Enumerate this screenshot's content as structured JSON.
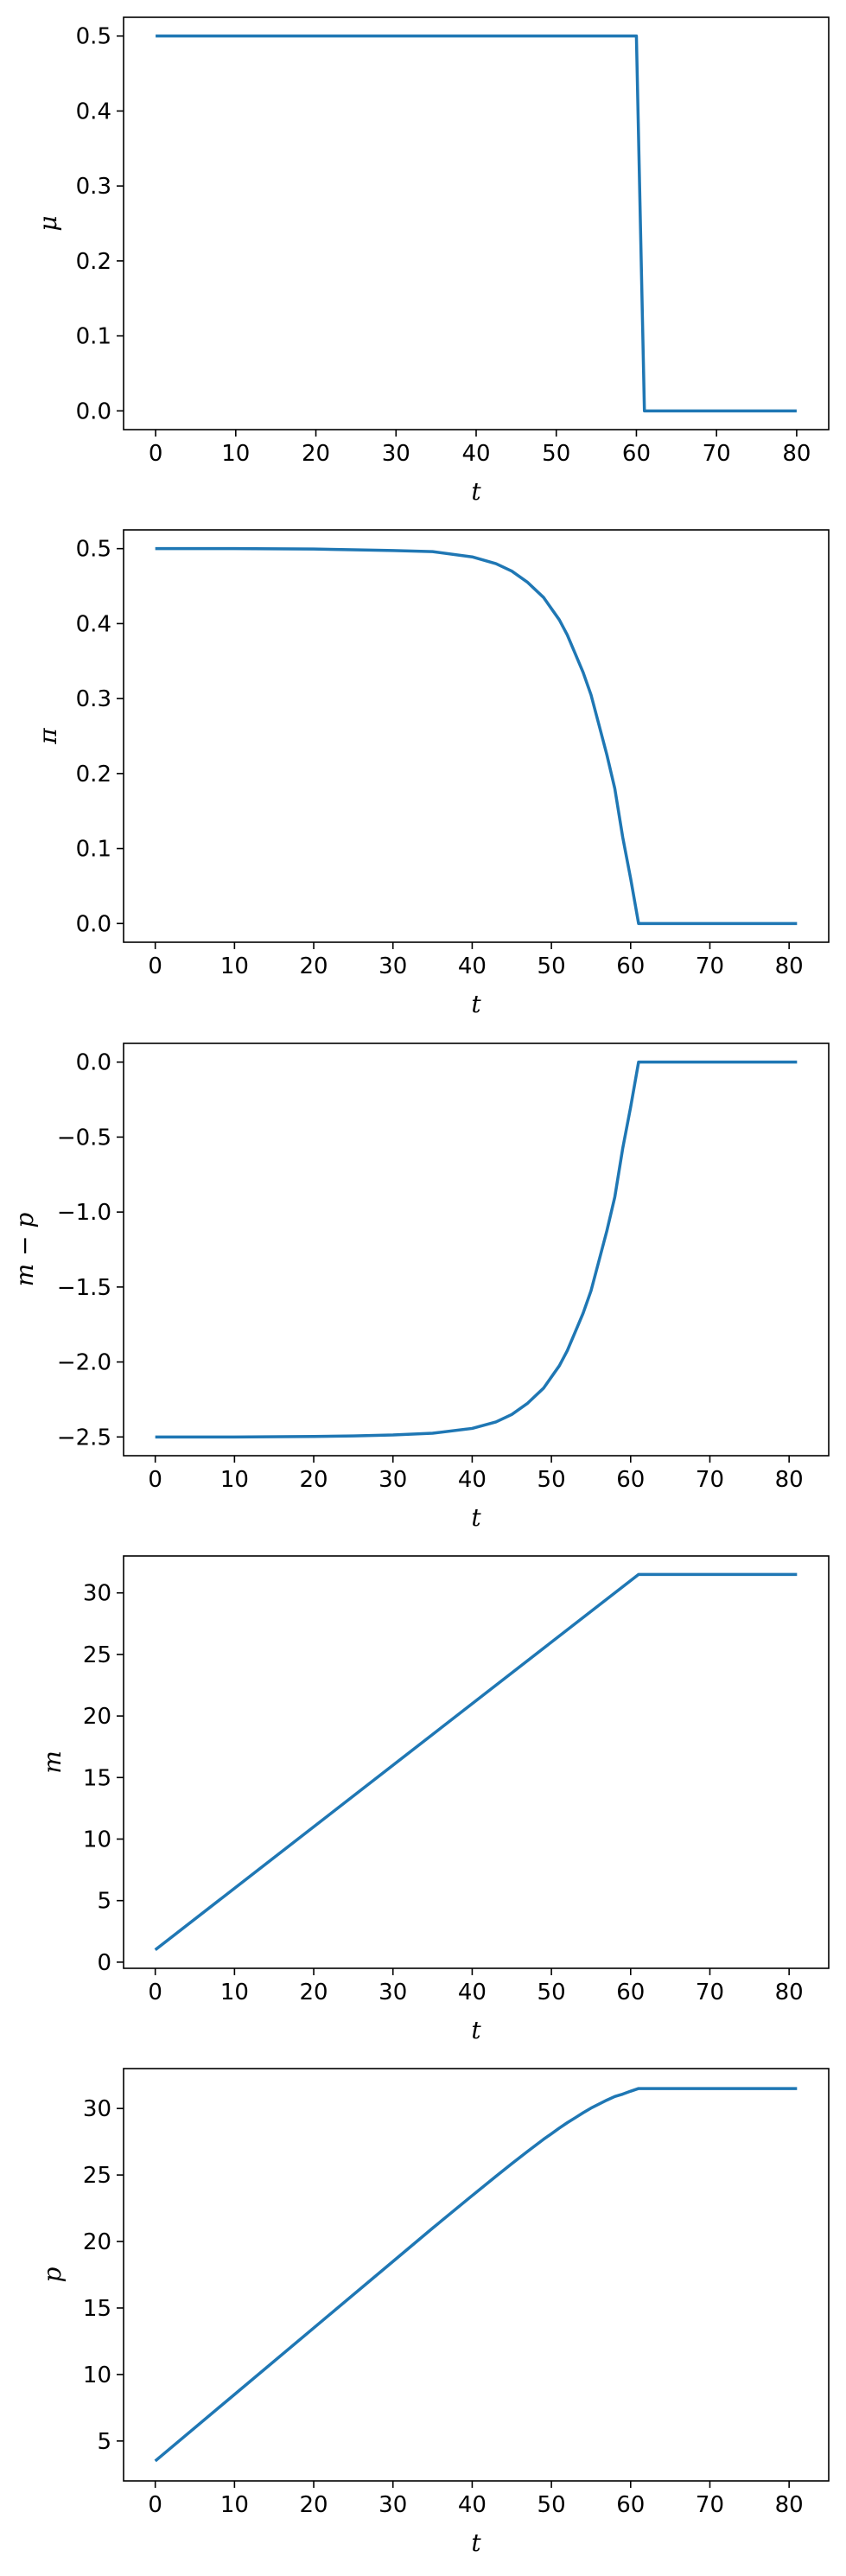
{
  "chart_data": [
    {
      "type": "line",
      "title": "",
      "xlabel": "t",
      "ylabel": "μ",
      "xlim": [
        -4,
        84
      ],
      "ylim": [
        -0.025,
        0.525
      ],
      "xticks": [
        0,
        10,
        20,
        30,
        40,
        50,
        60,
        70,
        80
      ],
      "yticks": [
        0.0,
        0.1,
        0.2,
        0.3,
        0.4,
        0.5
      ],
      "ytick_decimals": 1,
      "color": "#1f77b4",
      "grid": false,
      "series": [
        {
          "x": [
            0,
            60,
            61,
            80
          ],
          "y": [
            0.5,
            0.5,
            0.0,
            0.0
          ]
        }
      ]
    },
    {
      "type": "line",
      "title": "",
      "xlabel": "t",
      "ylabel": "π",
      "xlim": [
        -4,
        85
      ],
      "ylim": [
        -0.025,
        0.525
      ],
      "xticks": [
        0,
        10,
        20,
        30,
        40,
        50,
        60,
        70,
        80
      ],
      "yticks": [
        0.0,
        0.1,
        0.2,
        0.3,
        0.4,
        0.5
      ],
      "ytick_decimals": 1,
      "color": "#1f77b4",
      "grid": false,
      "series": [
        {
          "x": [
            0,
            10,
            20,
            25,
            30,
            35,
            40,
            43,
            45,
            47,
            49,
            50,
            51,
            52,
            53,
            54,
            55,
            56,
            57,
            58,
            59,
            60,
            61,
            62,
            70,
            81
          ],
          "y": [
            0.5,
            0.5,
            0.4995,
            0.4985,
            0.4975,
            0.496,
            0.489,
            0.48,
            0.47,
            0.455,
            0.435,
            0.42,
            0.405,
            0.385,
            0.36,
            0.335,
            0.305,
            0.265,
            0.225,
            0.18,
            0.115,
            0.06,
            0.0,
            0.0,
            0.0,
            0.0
          ]
        }
      ]
    },
    {
      "type": "line",
      "title": "",
      "xlabel": "t",
      "ylabel": "m − p",
      "xlim": [
        -4,
        85
      ],
      "ylim": [
        -2.625,
        0.125
      ],
      "xticks": [
        0,
        10,
        20,
        30,
        40,
        50,
        60,
        70,
        80
      ],
      "yticks": [
        -2.5,
        -2.0,
        -1.5,
        -1.0,
        -0.5,
        0.0
      ],
      "ytick_decimals": 1,
      "color": "#1f77b4",
      "grid": false,
      "series": [
        {
          "x": [
            0,
            10,
            20,
            25,
            30,
            35,
            40,
            43,
            45,
            47,
            49,
            50,
            51,
            52,
            53,
            54,
            55,
            56,
            57,
            58,
            59,
            60,
            61,
            62,
            70,
            81
          ],
          "y": [
            -2.5,
            -2.5,
            -2.497,
            -2.493,
            -2.487,
            -2.475,
            -2.443,
            -2.4,
            -2.35,
            -2.275,
            -2.175,
            -2.1,
            -2.025,
            -1.925,
            -1.8,
            -1.675,
            -1.525,
            -1.325,
            -1.125,
            -0.9,
            -0.575,
            -0.3,
            0.0,
            0.0,
            0.0,
            0.0
          ]
        }
      ]
    },
    {
      "type": "line",
      "title": "",
      "xlabel": "t",
      "ylabel": "m",
      "xlim": [
        -4,
        85
      ],
      "ylim": [
        -0.5,
        33
      ],
      "xticks": [
        0,
        10,
        20,
        30,
        40,
        50,
        60,
        70,
        80
      ],
      "yticks": [
        0,
        5,
        10,
        15,
        20,
        25,
        30
      ],
      "ytick_decimals": 0,
      "color": "#1f77b4",
      "grid": false,
      "series": [
        {
          "x": [
            0,
            61,
            81
          ],
          "y": [
            1.0,
            31.5,
            31.5
          ]
        }
      ]
    },
    {
      "type": "line",
      "title": "",
      "xlabel": "t",
      "ylabel": "p",
      "xlim": [
        -4,
        85
      ],
      "ylim": [
        2.0,
        33
      ],
      "xticks": [
        0,
        10,
        20,
        30,
        40,
        50,
        60,
        70,
        80
      ],
      "yticks": [
        5,
        10,
        15,
        20,
        25,
        30
      ],
      "ytick_decimals": 0,
      "color": "#1f77b4",
      "grid": false,
      "series": [
        {
          "x": [
            0,
            10,
            20,
            30,
            35,
            40,
            43,
            45,
            47,
            49,
            50,
            51,
            52,
            53,
            54,
            55,
            56,
            57,
            58,
            59,
            60,
            61,
            62,
            70,
            81
          ],
          "y": [
            3.5,
            8.5,
            13.5,
            18.5,
            21.0,
            23.45,
            24.9,
            25.85,
            26.78,
            27.68,
            28.1,
            28.53,
            28.93,
            29.3,
            29.68,
            30.03,
            30.33,
            30.63,
            30.9,
            31.08,
            31.3,
            31.5,
            31.5,
            31.5,
            31.5
          ]
        }
      ]
    }
  ]
}
